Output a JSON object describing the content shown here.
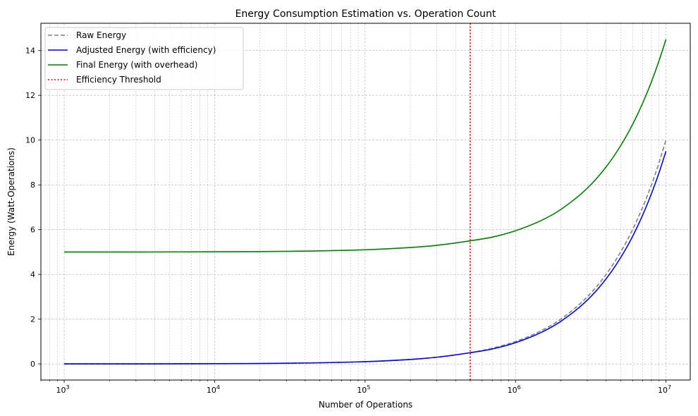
{
  "chart_data": {
    "type": "line",
    "title": "Energy Consumption Estimation vs. Operation Count",
    "xlabel": "Number of Operations",
    "ylabel": "Energy (Watt-Operations)",
    "xscale": "log",
    "xlim": [
      700,
      14500000
    ],
    "ylim": [
      -0.72,
      15.22
    ],
    "x_ticks": [
      {
        "base": "10",
        "exp": "3",
        "value": 1000
      },
      {
        "base": "10",
        "exp": "4",
        "value": 10000
      },
      {
        "base": "10",
        "exp": "5",
        "value": 100000
      },
      {
        "base": "10",
        "exp": "6",
        "value": 1000000
      },
      {
        "base": "10",
        "exp": "7",
        "value": 10000000
      }
    ],
    "y_ticks": [
      "0",
      "2",
      "4",
      "6",
      "8",
      "10",
      "12",
      "14"
    ],
    "grid": true,
    "legend_position": "top-left",
    "threshold": {
      "name": "Efficiency Threshold",
      "x": 500000,
      "color": "#ff0000"
    },
    "series": [
      {
        "name": "Raw Energy",
        "color": "#808080",
        "style": "dashed",
        "x": [
          1000,
          3000,
          10000,
          30000,
          100000,
          200000,
          300000,
          500000,
          700000,
          1000000,
          1500000,
          2000000,
          3000000,
          4000000,
          5000000,
          6000000,
          7000000,
          8000000,
          9000000,
          10000000
        ],
        "y": [
          0.001,
          0.003,
          0.01,
          0.03,
          0.1,
          0.2,
          0.3,
          0.5,
          0.7,
          1.0,
          1.5,
          2.0,
          3.0,
          4.0,
          5.0,
          6.0,
          7.0,
          8.0,
          9.0,
          10.0
        ]
      },
      {
        "name": "Adjusted Energy (with efficiency)",
        "color": "#0000ff",
        "style": "solid",
        "x": [
          1000,
          3000,
          10000,
          30000,
          100000,
          200000,
          300000,
          500000,
          700000,
          1000000,
          1500000,
          2000000,
          3000000,
          4000000,
          5000000,
          6000000,
          7000000,
          8000000,
          9000000,
          10000000
        ],
        "y": [
          0.001,
          0.003,
          0.01,
          0.03,
          0.1,
          0.2,
          0.3,
          0.5,
          0.665,
          0.95,
          1.425,
          1.9,
          2.85,
          3.8,
          4.75,
          5.7,
          6.65,
          7.6,
          8.55,
          9.5
        ]
      },
      {
        "name": "Final Energy (with overhead)",
        "color": "#008000",
        "style": "solid",
        "x": [
          1000,
          3000,
          10000,
          30000,
          100000,
          200000,
          300000,
          500000,
          700000,
          1000000,
          1500000,
          2000000,
          3000000,
          4000000,
          5000000,
          6000000,
          7000000,
          8000000,
          9000000,
          10000000
        ],
        "y": [
          5.0,
          5.0,
          5.01,
          5.03,
          5.1,
          5.2,
          5.3,
          5.5,
          5.665,
          5.95,
          6.425,
          6.9,
          7.85,
          8.8,
          9.75,
          10.7,
          11.65,
          12.6,
          13.55,
          14.5
        ]
      }
    ],
    "legend": [
      {
        "label": "Raw Energy",
        "color": "#808080",
        "style": "dashed"
      },
      {
        "label": "Adjusted Energy (with efficiency)",
        "color": "#0000ff",
        "style": "solid"
      },
      {
        "label": "Final Energy (with overhead)",
        "color": "#008000",
        "style": "solid"
      },
      {
        "label": "Efficiency Threshold",
        "color": "#ff0000",
        "style": "dotted"
      }
    ]
  }
}
